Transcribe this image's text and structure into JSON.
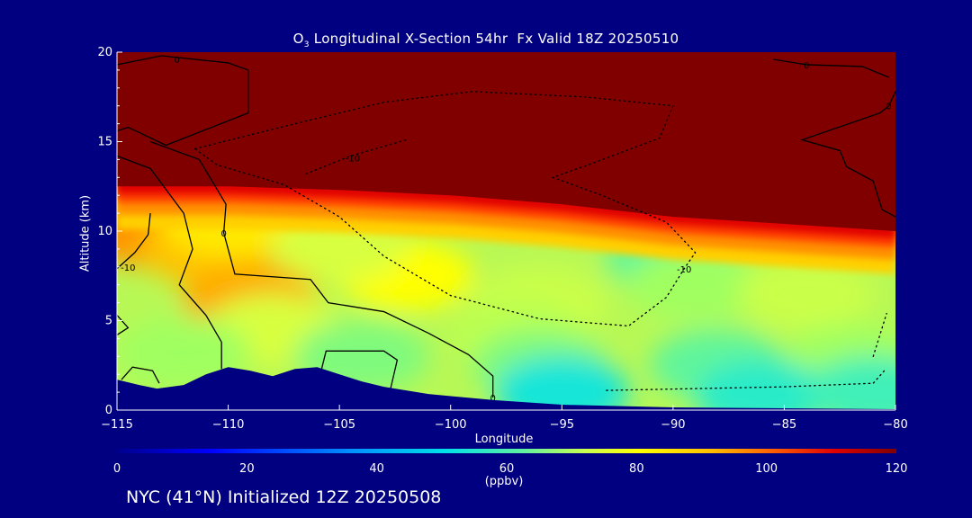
{
  "title": {
    "species": "O",
    "subscript": "3",
    "rest": " Longitudinal X-Section 54hr  Fx Valid 18Z 20250510"
  },
  "footer": "NYC (41°N) Initialized 12Z 20250508",
  "chart_data": {
    "type": "heatmap",
    "xlabel": "Longitude",
    "ylabel": "Altitude (km)",
    "xlim": [
      -115,
      -80
    ],
    "ylim": [
      0,
      20
    ],
    "xticks": [
      -115,
      -110,
      -105,
      -100,
      -95,
      -90,
      -85,
      -80
    ],
    "yticks": [
      0,
      5,
      10,
      15,
      20
    ],
    "contour_labels": [
      {
        "text": "0",
        "x": -112.3,
        "y": 19.6
      },
      {
        "text": "0",
        "x": -84.0,
        "y": 19.3
      },
      {
        "text": "0",
        "x": -80.3,
        "y": 17.0
      },
      {
        "text": "-10",
        "x": -104.4,
        "y": 14.1
      },
      {
        "text": "-10",
        "x": -89.5,
        "y": 7.9
      },
      {
        "text": "-10",
        "x": -114.5,
        "y": 8.0
      },
      {
        "text": "0",
        "x": -110.2,
        "y": 9.9
      },
      {
        "text": "0",
        "x": -98.1,
        "y": 0.7
      }
    ],
    "colorbar": {
      "label": "(ppbv)",
      "min": 0,
      "max": 120,
      "ticks": [
        0,
        20,
        40,
        60,
        80,
        100,
        120
      ]
    },
    "terrain_km": [
      [
        -115,
        1.7
      ],
      [
        -114,
        1.4
      ],
      [
        -113.2,
        1.2
      ],
      [
        -112,
        1.4
      ],
      [
        -111,
        2.0
      ],
      [
        -110,
        2.4
      ],
      [
        -109,
        2.2
      ],
      [
        -108,
        1.9
      ],
      [
        -107,
        2.3
      ],
      [
        -106,
        2.4
      ],
      [
        -105,
        2.0
      ],
      [
        -104,
        1.6
      ],
      [
        -103,
        1.3
      ],
      [
        -101,
        0.9
      ],
      [
        -98,
        0.55
      ],
      [
        -95,
        0.3
      ],
      [
        -90,
        0.15
      ],
      [
        -85,
        0.1
      ],
      [
        -80,
        0.05
      ]
    ],
    "tropopause_km": [
      [
        -115,
        12.5
      ],
      [
        -110,
        12.5
      ],
      [
        -105,
        12.3
      ],
      [
        -100,
        12.0
      ],
      [
        -95,
        11.5
      ],
      [
        -90,
        10.8
      ],
      [
        -85,
        10.4
      ],
      [
        -80,
        10.0
      ]
    ],
    "ozone_ppbv": [
      {
        "x": -113.5,
        "y": 10.0,
        "value": 86
      },
      {
        "x": -111.0,
        "y": 9.0,
        "value": 82
      },
      {
        "x": -109.0,
        "y": 6.2,
        "value": 84
      },
      {
        "x": -110.0,
        "y": 10.5,
        "value": 78
      },
      {
        "x": -102.0,
        "y": 7.5,
        "value": 76
      },
      {
        "x": -105.0,
        "y": 9.2,
        "value": 70
      },
      {
        "x": -90.0,
        "y": 8.5,
        "value": 58
      },
      {
        "x": -89.0,
        "y": 7.0,
        "value": 62
      },
      {
        "x": -84.0,
        "y": 6.5,
        "value": 68
      },
      {
        "x": -96.0,
        "y": 6.0,
        "value": 68
      },
      {
        "x": -97.0,
        "y": 4.3,
        "value": 66
      },
      {
        "x": -108.0,
        "y": 4.5,
        "value": 70
      },
      {
        "x": -112.0,
        "y": 3.2,
        "value": 62
      },
      {
        "x": -104.0,
        "y": 3.0,
        "value": 60
      },
      {
        "x": -96.0,
        "y": 2.5,
        "value": 60
      },
      {
        "x": -88.0,
        "y": 2.5,
        "value": 58
      },
      {
        "x": -82.0,
        "y": 2.8,
        "value": 62
      },
      {
        "x": -95.0,
        "y": 1.0,
        "value": 52
      },
      {
        "x": -86.0,
        "y": 0.8,
        "value": 54
      },
      {
        "x": -81.0,
        "y": 1.0,
        "value": 56
      }
    ],
    "grid": false
  }
}
